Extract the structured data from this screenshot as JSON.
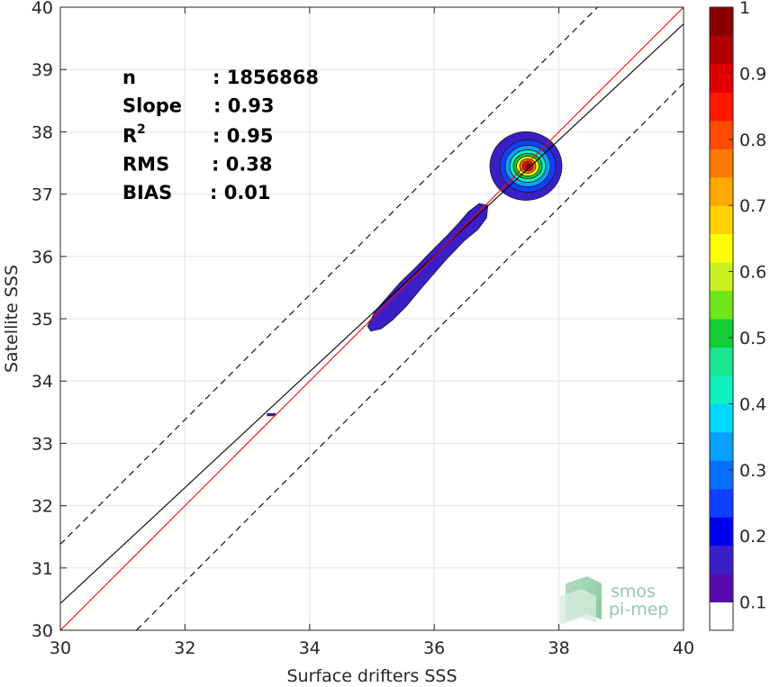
{
  "chart_data": {
    "type": "contour-scatter-density",
    "xlabel": "Surface drifters SSS",
    "ylabel": "Satellite SSS",
    "xlim": [
      30,
      40
    ],
    "ylim": [
      30,
      40
    ],
    "xticks": [
      "30",
      "32",
      "34",
      "36",
      "38",
      "40"
    ],
    "yticks": [
      "30",
      "31",
      "32",
      "33",
      "34",
      "35",
      "36",
      "37",
      "38",
      "39",
      "40"
    ],
    "grid": true,
    "stats": [
      {
        "label": "n",
        "value": ": 1856868"
      },
      {
        "label": "Slope",
        "value": ": 0.93"
      },
      {
        "label": "R",
        "sup": "2",
        "value": ": 0.95"
      },
      {
        "label": "RMS",
        "value": ": 0.38"
      },
      {
        "label": "BIAS",
        "value": ": 0.01"
      }
    ],
    "lines": {
      "one_to_one": {
        "slope": 1,
        "intercept": 0,
        "color": "#ff0000"
      },
      "fit": {
        "slope": 0.93,
        "intercept": 2.53,
        "color": "#000000"
      },
      "upper_bound": {
        "slope": 1,
        "intercept": 1.38,
        "color": "#000000",
        "style": "dashed"
      },
      "lower_bound": {
        "slope": 1,
        "intercept": -1.22,
        "color": "#000000",
        "style": "dashed"
      }
    },
    "density_peak": {
      "x": 37.5,
      "y": 37.45
    },
    "colorbar": {
      "ticks": [
        "0.1",
        "0.2",
        "0.3",
        "0.4",
        "0.5",
        "0.6",
        "0.7",
        "0.8",
        "0.9",
        "1"
      ],
      "colors": [
        "#ffffff",
        "#5a0bb0",
        "#3a1fc8",
        "#0000ee",
        "#0f40ff",
        "#0a70ff",
        "#0aa0ff",
        "#00d8ff",
        "#10f0c0",
        "#1ae690",
        "#14cc33",
        "#70e61a",
        "#c8f020",
        "#ffff00",
        "#ffd200",
        "#ffa800",
        "#ff7a00",
        "#ff4a00",
        "#ff1800",
        "#e00000",
        "#b00000",
        "#8a0000"
      ]
    }
  },
  "logo": {
    "line1": "smos",
    "line2": "pi-mep"
  }
}
